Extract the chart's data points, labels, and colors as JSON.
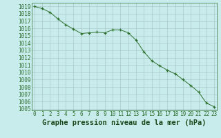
{
  "x": [
    0,
    1,
    2,
    3,
    4,
    5,
    6,
    7,
    8,
    9,
    10,
    11,
    12,
    13,
    14,
    15,
    16,
    17,
    18,
    19,
    20,
    21,
    22,
    23
  ],
  "y": [
    1019.0,
    1018.7,
    1018.2,
    1017.3,
    1016.5,
    1015.9,
    1015.3,
    1015.4,
    1015.5,
    1015.4,
    1015.8,
    1015.8,
    1015.4,
    1014.4,
    1012.8,
    1011.6,
    1010.9,
    1010.3,
    1009.8,
    1009.0,
    1008.2,
    1007.3,
    1005.8,
    1005.3
  ],
  "line_color": "#2d6e2d",
  "marker_color": "#2d6e2d",
  "bg_color": "#c8ecec",
  "grid_major_color": "#a0c0c0",
  "title": "Graphe pression niveau de la mer (hPa)",
  "title_color": "#1a4a1a",
  "title_fontsize": 7.5,
  "tick_color": "#2d6e2d",
  "tick_fontsize": 5.5,
  "ylim": [
    1004.8,
    1019.5
  ],
  "xlim": [
    -0.3,
    23.3
  ],
  "yticks": [
    1005,
    1006,
    1007,
    1008,
    1009,
    1010,
    1011,
    1012,
    1013,
    1014,
    1015,
    1016,
    1017,
    1018,
    1019
  ],
  "xticks": [
    0,
    1,
    2,
    3,
    4,
    5,
    6,
    7,
    8,
    9,
    10,
    11,
    12,
    13,
    14,
    15,
    16,
    17,
    18,
    19,
    20,
    21,
    22,
    23
  ]
}
